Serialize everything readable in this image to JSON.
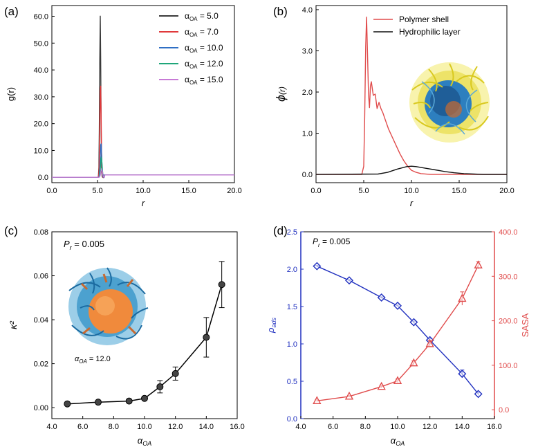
{
  "chart_data": [
    {
      "id": "a",
      "panel_label": "(a)",
      "type": "line",
      "xlabel": "r",
      "ylabel": "g(r)",
      "xlim": [
        0,
        20
      ],
      "ylim": [
        -2,
        64
      ],
      "xticks": [
        0,
        5,
        10,
        15,
        20
      ],
      "xtick_labels": [
        "0.0",
        "5.0",
        "10.0",
        "15.0",
        "20.0"
      ],
      "yticks": [
        0,
        10,
        20,
        30,
        40,
        50,
        60
      ],
      "ytick_labels": [
        "0.0",
        "10.0",
        "20.0",
        "30.0",
        "40.0",
        "50.0",
        "60.0"
      ],
      "legend_position": "top-right",
      "series": [
        {
          "name": "αOA = 5.0",
          "legend_main": "α",
          "legend_sub": "OA",
          "legend_tail": " = 5.0",
          "color": "#3a3a3a",
          "peak_x": 5.3,
          "peak": 60.2,
          "width": 0.09
        },
        {
          "name": "αOA = 7.0",
          "legend_main": "α",
          "legend_sub": "OA",
          "legend_tail": " = 7.0",
          "color": "#e0393b",
          "peak_x": 5.33,
          "peak": 35.5,
          "width": 0.1
        },
        {
          "name": "αOA = 10.0",
          "legend_main": "α",
          "legend_sub": "OA",
          "legend_tail": " = 10.0",
          "color": "#2f6fc4",
          "peak_x": 5.38,
          "peak": 13.0,
          "width": 0.11
        },
        {
          "name": "αOA = 12.0",
          "legend_main": "α",
          "legend_sub": "OA",
          "legend_tail": " = 12.0",
          "color": "#1fa67a",
          "peak_x": 5.42,
          "peak": 7.5,
          "width": 0.12
        },
        {
          "name": "αOA = 15.0",
          "legend_main": "α",
          "legend_sub": "OA",
          "legend_tail": " = 15.0",
          "color": "#c77ad6",
          "peak_x": 5.45,
          "peak": 3.0,
          "width": 0.13
        }
      ]
    },
    {
      "id": "b",
      "panel_label": "(b)",
      "type": "line",
      "xlabel": "r",
      "ylabel": "ϕ(r)",
      "ylabel_main": "ϕ",
      "ylabel_tail": "(r)",
      "xlim": [
        0,
        20
      ],
      "ylim": [
        -0.2,
        4.1
      ],
      "xticks": [
        0,
        5,
        10,
        15,
        20
      ],
      "xtick_labels": [
        "0.0",
        "5.0",
        "10.0",
        "15.0",
        "20.0"
      ],
      "yticks": [
        0,
        1,
        2,
        3,
        4
      ],
      "ytick_labels": [
        "0.0",
        "1.0",
        "2.0",
        "3.0",
        "4.0"
      ],
      "legend_position": "top-right",
      "inset": "yellow-blue micelle snapshot",
      "series": [
        {
          "name": "Polymer shell",
          "color": "#e04b4b",
          "x": [
            0,
            4.8,
            5.0,
            5.1,
            5.2,
            5.3,
            5.4,
            5.5,
            5.6,
            5.7,
            5.8,
            6.0,
            6.2,
            6.4,
            6.6,
            6.8,
            7.0,
            7.3,
            7.6,
            8.0,
            8.4,
            8.8,
            9.2,
            9.6,
            10.0,
            10.5,
            11.0,
            12.0,
            20.0
          ],
          "y": [
            0,
            0,
            0.2,
            1.4,
            3.1,
            3.82,
            2.9,
            1.95,
            1.62,
            2.15,
            2.25,
            1.92,
            1.95,
            1.6,
            1.75,
            1.6,
            1.5,
            1.3,
            1.1,
            0.9,
            0.7,
            0.5,
            0.33,
            0.2,
            0.1,
            0.05,
            0.02,
            0,
            0
          ]
        },
        {
          "name": "Hydrophilic layer",
          "color": "#111111",
          "x": [
            0,
            6.5,
            7.5,
            8.5,
            9.5,
            10.0,
            10.5,
            11.5,
            12.5,
            13.5,
            14.5,
            15.5,
            16.5,
            17.5,
            20.0
          ],
          "y": [
            0,
            0.01,
            0.05,
            0.13,
            0.19,
            0.2,
            0.19,
            0.15,
            0.11,
            0.07,
            0.04,
            0.02,
            0.01,
            0,
            0
          ]
        }
      ]
    },
    {
      "id": "c",
      "panel_label": "(c)",
      "type": "scatter",
      "xlabel": "αOA",
      "xlabel_main": "α",
      "xlabel_sub": "OA",
      "ylabel": "κ²",
      "annotation": "Pr = 0.005",
      "annotation_main": "P",
      "annotation_sub": "r",
      "annotation_tail": " = 0.005",
      "inset_label": "αOA = 12.0",
      "inset_label_main": "α",
      "inset_label_sub": "OA",
      "inset_label_tail": " = 12.0",
      "xlim": [
        4,
        16
      ],
      "ylim": [
        -0.005,
        0.08
      ],
      "xticks": [
        4,
        6,
        8,
        10,
        12,
        14,
        16
      ],
      "xtick_labels": [
        "4.0",
        "6.0",
        "8.0",
        "10.0",
        "12.0",
        "14.0",
        "16.0"
      ],
      "yticks": [
        0,
        0.02,
        0.04,
        0.06,
        0.08
      ],
      "ytick_labels": [
        "0.00",
        "0.02",
        "0.04",
        "0.06",
        "0.08"
      ],
      "color": "#000000",
      "x": [
        5,
        7,
        9,
        10,
        11,
        12,
        14,
        15
      ],
      "y": [
        0.0017,
        0.0025,
        0.003,
        0.0042,
        0.0095,
        0.0155,
        0.032,
        0.056
      ],
      "err": [
        0.0005,
        0.0006,
        0.0007,
        0.001,
        0.0028,
        0.003,
        0.009,
        0.0105
      ]
    },
    {
      "id": "d",
      "panel_label": "(d)",
      "type": "line",
      "xlabel": "αOA",
      "xlabel_main": "α",
      "xlabel_sub": "OA",
      "annotation": "Pr = 0.005",
      "annotation_main": "P",
      "annotation_sub": "r",
      "annotation_tail": " = 0.005",
      "xlim": [
        4,
        16
      ],
      "xticks": [
        4,
        6,
        8,
        10,
        12,
        14,
        16
      ],
      "xtick_labels": [
        "4.0",
        "6.0",
        "8.0",
        "10.0",
        "12.0",
        "14.0",
        "16.0"
      ],
      "left_axis": {
        "label": "ρads",
        "label_main": "ρ",
        "label_sub": "ads",
        "color": "#1f2fbf",
        "lim": [
          0,
          2.5
        ],
        "ticks": [
          0,
          0.5,
          1,
          1.5,
          2,
          2.5
        ],
        "tick_labels": [
          "0.0",
          "0.5",
          "1.0",
          "1.5",
          "2.0",
          "2.5"
        ]
      },
      "right_axis": {
        "label": "SASA",
        "color": "#e04b4b",
        "lim": [
          -20,
          400
        ],
        "ticks": [
          0,
          100,
          200,
          300,
          400
        ],
        "tick_labels": [
          "0.0",
          "100.0",
          "200.0",
          "300.0",
          "400.0"
        ]
      },
      "series": [
        {
          "name": "ρads",
          "axis": "left",
          "marker": "diamond",
          "color": "#1f2fbf",
          "x": [
            5,
            7,
            9,
            10,
            11,
            12,
            14,
            15
          ],
          "y": [
            2.04,
            1.85,
            1.62,
            1.51,
            1.29,
            1.05,
            0.6,
            0.33
          ],
          "err": [
            0.01,
            0.01,
            0.01,
            0.01,
            0.015,
            0.02,
            0.05,
            0.02
          ]
        },
        {
          "name": "SASA",
          "axis": "right",
          "marker": "triangle",
          "color": "#e04b4b",
          "x": [
            5,
            7,
            9,
            10,
            11,
            12,
            14,
            15
          ],
          "y": [
            20,
            30,
            52,
            65,
            105,
            148,
            250,
            325
          ],
          "err": [
            2,
            2,
            3,
            4,
            5,
            7,
            15,
            8
          ]
        }
      ]
    }
  ]
}
